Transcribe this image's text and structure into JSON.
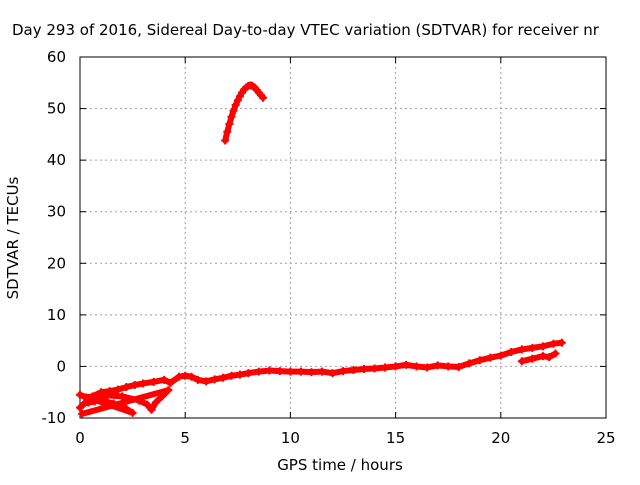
{
  "chart_data": {
    "type": "scatter",
    "title": "Day 293 of 2016, Sidereal Day-to-day VTEC variation (SDTVAR) for receiver nr",
    "xlabel": "GPS time / hours",
    "ylabel": "SDTVAR / TECUs",
    "xlim": [
      0,
      25
    ],
    "ylim": [
      -10,
      60
    ],
    "xticks": [
      0,
      5,
      10,
      15,
      20,
      25
    ],
    "yticks": [
      -10,
      0,
      10,
      20,
      30,
      40,
      50,
      60
    ],
    "xtick_labels": [
      "0",
      "5",
      "10",
      "15",
      "20",
      "25"
    ],
    "ytick_labels": [
      "-10",
      "0",
      "10",
      "20",
      "30",
      "40",
      "50",
      "60"
    ],
    "grid": true,
    "marker_color": "#ff0000",
    "series": [
      {
        "name": "main-trend",
        "points": [
          [
            0.0,
            -5.5
          ],
          [
            0.3,
            -6.0
          ],
          [
            0.6,
            -5.8
          ],
          [
            1.0,
            -5.0
          ],
          [
            1.4,
            -4.8
          ],
          [
            1.8,
            -4.5
          ],
          [
            2.2,
            -4.0
          ],
          [
            2.6,
            -3.6
          ],
          [
            3.0,
            -3.3
          ],
          [
            3.5,
            -3.0
          ],
          [
            4.0,
            -2.6
          ],
          [
            4.3,
            -3.2
          ],
          [
            4.7,
            -2.0
          ],
          [
            5.0,
            -1.8
          ],
          [
            5.3,
            -2.0
          ],
          [
            5.6,
            -2.6
          ],
          [
            6.0,
            -2.9
          ],
          [
            6.4,
            -2.5
          ],
          [
            6.8,
            -2.2
          ],
          [
            7.2,
            -1.8
          ],
          [
            7.6,
            -1.6
          ],
          [
            8.0,
            -1.3
          ],
          [
            8.5,
            -1.0
          ],
          [
            9.0,
            -0.8
          ],
          [
            9.5,
            -0.9
          ],
          [
            10.0,
            -1.0
          ],
          [
            10.5,
            -1.0
          ],
          [
            11.0,
            -1.1
          ],
          [
            11.5,
            -1.0
          ],
          [
            12.0,
            -1.3
          ],
          [
            12.5,
            -0.9
          ],
          [
            13.0,
            -0.7
          ],
          [
            13.5,
            -0.5
          ],
          [
            14.0,
            -0.4
          ],
          [
            14.5,
            -0.2
          ],
          [
            15.0,
            0.0
          ],
          [
            15.5,
            0.3
          ],
          [
            16.0,
            0.0
          ],
          [
            16.5,
            -0.2
          ],
          [
            17.0,
            0.2
          ],
          [
            17.5,
            0.0
          ],
          [
            18.0,
            -0.1
          ],
          [
            18.5,
            0.6
          ],
          [
            19.0,
            1.2
          ],
          [
            19.5,
            1.7
          ],
          [
            20.0,
            2.1
          ],
          [
            20.5,
            2.8
          ],
          [
            21.0,
            3.3
          ],
          [
            21.5,
            3.6
          ],
          [
            22.0,
            3.9
          ],
          [
            22.5,
            4.4
          ],
          [
            22.9,
            4.6
          ]
        ]
      },
      {
        "name": "early-hours-spread",
        "points": [
          [
            0.0,
            -8.0
          ],
          [
            0.2,
            -7.2
          ],
          [
            0.4,
            -7.0
          ],
          [
            0.7,
            -6.8
          ],
          [
            1.0,
            -6.5
          ],
          [
            1.3,
            -6.9
          ],
          [
            1.6,
            -7.2
          ],
          [
            1.9,
            -7.6
          ],
          [
            2.2,
            -8.2
          ],
          [
            2.5,
            -9.0
          ],
          [
            0.5,
            -6.2
          ],
          [
            1.2,
            -5.6
          ],
          [
            2.0,
            -5.8
          ],
          [
            2.8,
            -6.6
          ],
          [
            3.2,
            -7.4
          ],
          [
            3.4,
            -8.4
          ],
          [
            3.6,
            -7.0
          ],
          [
            3.9,
            -5.8
          ],
          [
            4.2,
            -4.6
          ],
          [
            0.1,
            -9.2
          ]
        ]
      },
      {
        "name": "afternoon-offshoot",
        "points": [
          [
            21.0,
            1.0
          ],
          [
            21.5,
            1.5
          ],
          [
            22.0,
            2.0
          ],
          [
            22.3,
            1.8
          ],
          [
            22.6,
            2.5
          ]
        ]
      },
      {
        "name": "high-arc",
        "points": [
          [
            6.9,
            43.8
          ],
          [
            7.0,
            45.5
          ],
          [
            7.1,
            47.0
          ],
          [
            7.2,
            48.4
          ],
          [
            7.3,
            49.6
          ],
          [
            7.4,
            50.7
          ],
          [
            7.5,
            51.6
          ],
          [
            7.6,
            52.4
          ],
          [
            7.7,
            53.1
          ],
          [
            7.8,
            53.7
          ],
          [
            7.9,
            54.1
          ],
          [
            8.0,
            54.4
          ],
          [
            8.1,
            54.5
          ],
          [
            8.2,
            54.4
          ],
          [
            8.3,
            54.1
          ],
          [
            8.4,
            53.6
          ],
          [
            8.5,
            53.1
          ],
          [
            8.6,
            52.6
          ],
          [
            8.7,
            52.1
          ]
        ]
      }
    ]
  }
}
